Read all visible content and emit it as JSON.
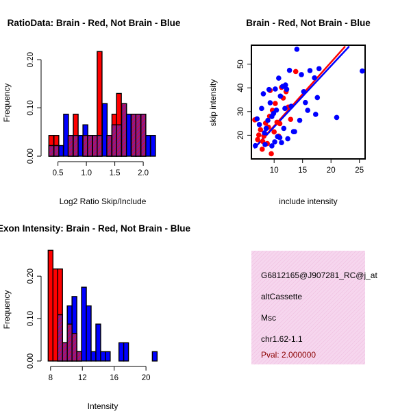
{
  "colors": {
    "red": "#ff0000",
    "blue": "#0000ff",
    "overlap": "#8b1a8b",
    "pink_panel": "#f6d6ee",
    "pval": "#8b0000"
  },
  "chart_data": [
    {
      "id": "ratio",
      "type": "bar",
      "title": "RatioData: Brain - Red, Not Brain - Blue",
      "xlabel": "Log2 Ratio Skip/Include",
      "ylabel": "Frequency",
      "xlim": [
        0.3,
        2.3
      ],
      "ylim": [
        0,
        0.23
      ],
      "xticks": [
        0.5,
        1.0,
        1.5,
        2.0
      ],
      "xtick_labels": [
        "0.5",
        "1.0",
        "1.5",
        "2.0"
      ],
      "yticks": [
        0.0,
        0.1,
        0.2
      ],
      "ytick_labels": [
        "0.00",
        "0.10",
        "0.20"
      ],
      "bin_width": 0.085,
      "series": [
        {
          "name": "Brain",
          "color": "red",
          "bins": [
            [
              0.34,
              0.043
            ],
            [
              0.43,
              0.043
            ],
            [
              0.68,
              0.043
            ],
            [
              0.77,
              0.087
            ],
            [
              0.94,
              0.043
            ],
            [
              1.02,
              0.043
            ],
            [
              1.11,
              0.043
            ],
            [
              1.19,
              0.217
            ],
            [
              1.36,
              0.043
            ],
            [
              1.45,
              0.087
            ],
            [
              1.53,
              0.13
            ],
            [
              1.62,
              0.109
            ],
            [
              1.79,
              0.087
            ],
            [
              1.87,
              0.087
            ],
            [
              1.96,
              0.087
            ]
          ]
        },
        {
          "name": "Not Brain",
          "color": "blue",
          "bins": [
            [
              0.34,
              0.022
            ],
            [
              0.43,
              0.022
            ],
            [
              0.51,
              0.022
            ],
            [
              0.6,
              0.087
            ],
            [
              0.68,
              0.043
            ],
            [
              0.77,
              0.043
            ],
            [
              0.85,
              0.043
            ],
            [
              0.94,
              0.065
            ],
            [
              1.02,
              0.043
            ],
            [
              1.11,
              0.043
            ],
            [
              1.19,
              0.043
            ],
            [
              1.28,
              0.109
            ],
            [
              1.36,
              0.043
            ],
            [
              1.45,
              0.065
            ],
            [
              1.53,
              0.065
            ],
            [
              1.62,
              0.109
            ],
            [
              1.7,
              0.087
            ],
            [
              1.79,
              0.087
            ],
            [
              1.87,
              0.087
            ],
            [
              1.96,
              0.087
            ],
            [
              2.04,
              0.043
            ],
            [
              2.13,
              0.043
            ]
          ]
        }
      ]
    },
    {
      "id": "scatter",
      "type": "scatter",
      "title": "Brain - Red, Not Brain - Blue",
      "xlabel": "include intensity",
      "ylabel": "skip intensity",
      "xlim": [
        6,
        26
      ],
      "ylim": [
        10,
        58
      ],
      "xticks": [
        10,
        15,
        20,
        25
      ],
      "yticks": [
        20,
        30,
        40,
        50
      ],
      "series": [
        {
          "name": "Brain",
          "color": "red",
          "points": [
            [
              6.6,
              26.5
            ],
            [
              7.1,
              18.2
            ],
            [
              7.3,
              20.1
            ],
            [
              7.6,
              22.3
            ],
            [
              7.9,
              14.1
            ],
            [
              8.2,
              19.6
            ],
            [
              8.5,
              25.1
            ],
            [
              8.8,
              16.5
            ],
            [
              9.0,
              23.4
            ],
            [
              9.2,
              28.0
            ],
            [
              9.5,
              12.2
            ],
            [
              9.7,
              30.5
            ],
            [
              10.0,
              21.4
            ],
            [
              10.2,
              33.4
            ],
            [
              10.5,
              25.5
            ],
            [
              10.8,
              19.6
            ],
            [
              11.0,
              24.9
            ],
            [
              11.3,
              40.2
            ],
            [
              11.6,
              35.7
            ],
            [
              12.1,
              38.4
            ],
            [
              12.5,
              31.9
            ],
            [
              12.9,
              26.7
            ],
            [
              13.8,
              46.9
            ],
            [
              9.3,
              38.9
            ],
            [
              8.0,
              17.4
            ]
          ]
        },
        {
          "name": "Not Brain",
          "color": "blue",
          "points": [
            [
              6.7,
              15.6
            ],
            [
              7.0,
              26.9
            ],
            [
              7.4,
              24.5
            ],
            [
              7.8,
              31.3
            ],
            [
              8.1,
              37.5
            ],
            [
              8.4,
              16.1
            ],
            [
              8.6,
              22.9
            ],
            [
              8.9,
              26.3
            ],
            [
              9.1,
              39.3
            ],
            [
              9.3,
              33.7
            ],
            [
              9.6,
              15.5
            ],
            [
              9.9,
              29.2
            ],
            [
              10.1,
              17.2
            ],
            [
              10.4,
              30.6
            ],
            [
              10.6,
              19.4
            ],
            [
              10.8,
              44.1
            ],
            [
              11.1,
              36.5
            ],
            [
              11.3,
              16.9
            ],
            [
              11.5,
              40.6
            ],
            [
              11.7,
              22.9
            ],
            [
              11.9,
              31.3
            ],
            [
              12.2,
              39.4
            ],
            [
              12.4,
              18.5
            ],
            [
              12.7,
              47.4
            ],
            [
              13.0,
              32.2
            ],
            [
              13.4,
              21.5
            ],
            [
              14.0,
              56.3
            ],
            [
              14.5,
              26.3
            ],
            [
              14.8,
              45.6
            ],
            [
              15.2,
              38.4
            ],
            [
              15.5,
              33.8
            ],
            [
              15.9,
              30.5
            ],
            [
              16.3,
              47.3
            ],
            [
              17.1,
              44.2
            ],
            [
              17.6,
              35.9
            ],
            [
              17.9,
              48.1
            ],
            [
              17.3,
              28.8
            ],
            [
              21.0,
              27.5
            ],
            [
              25.5,
              47.1
            ],
            [
              10.2,
              39.5
            ],
            [
              12.0,
              41.2
            ],
            [
              9.6,
              27.9
            ],
            [
              13.6,
              21.5
            ],
            [
              11.0,
              19.0
            ],
            [
              8.3,
              21.0
            ]
          ]
        }
      ],
      "fit_lines": [
        {
          "color": "red",
          "x": [
            6.5,
            22.5
          ],
          "y": [
            14.5,
            57.5
          ]
        },
        {
          "color": "blue",
          "x": [
            6.5,
            23.2
          ],
          "y": [
            14.5,
            57.5
          ]
        }
      ]
    },
    {
      "id": "intensity",
      "type": "bar",
      "title": "Exon Intensity: Brain - Red, Not Brain - Blue",
      "xlabel": "Intensity",
      "ylabel": "Frequency",
      "xlim": [
        7.5,
        21.8
      ],
      "ylim": [
        0,
        0.26
      ],
      "xticks": [
        8,
        12,
        16,
        20
      ],
      "xtick_labels": [
        "8",
        "12",
        "16",
        "20"
      ],
      "yticks": [
        0.0,
        0.1,
        0.2
      ],
      "ytick_labels": [
        "0.00",
        "0.10",
        "0.20"
      ],
      "bin_width": 0.6,
      "series": [
        {
          "name": "Brain",
          "color": "red",
          "bins": [
            [
              7.7,
              0.261
            ],
            [
              8.3,
              0.217
            ],
            [
              8.9,
              0.217
            ],
            [
              9.5,
              0.043
            ],
            [
              10.1,
              0.087
            ],
            [
              10.7,
              0.065
            ],
            [
              11.3,
              0.022
            ]
          ]
        },
        {
          "name": "Not Brain",
          "color": "blue",
          "bins": [
            [
              8.9,
              0.109
            ],
            [
              9.5,
              0.043
            ],
            [
              10.1,
              0.13
            ],
            [
              10.7,
              0.152
            ],
            [
              11.3,
              0.022
            ],
            [
              11.9,
              0.174
            ],
            [
              12.5,
              0.13
            ],
            [
              13.1,
              0.022
            ],
            [
              13.7,
              0.087
            ],
            [
              14.3,
              0.022
            ],
            [
              14.9,
              0.022
            ],
            [
              16.6,
              0.043
            ],
            [
              17.2,
              0.043
            ],
            [
              20.8,
              0.022
            ]
          ]
        }
      ]
    }
  ],
  "info_panel": {
    "probe_id": "G6812165@J907281_RC@j_at",
    "event_type": "altCassette",
    "tissue": "Msc",
    "location": "chr1.62-1.1",
    "pval": "Pval: 2.000000"
  }
}
